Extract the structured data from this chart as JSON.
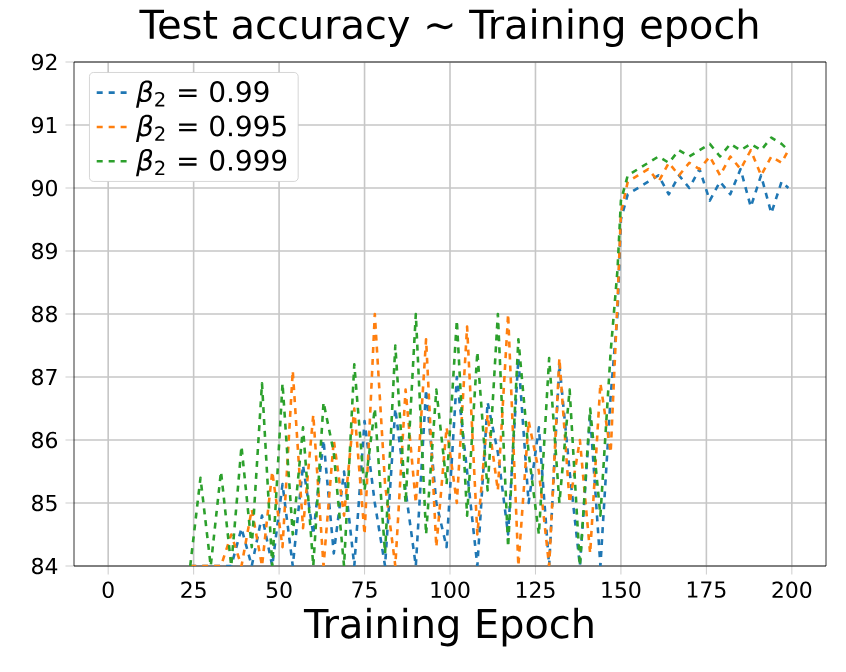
{
  "chart_data": {
    "type": "line",
    "title": "Test accuracy ~ Training epoch",
    "xlabel": "Training Epoch",
    "xlim": [
      -10,
      210
    ],
    "xticks": [
      0,
      25,
      50,
      75,
      100,
      125,
      150,
      175,
      200
    ],
    "ylim": [
      84,
      92
    ],
    "yticks": [
      84,
      85,
      86,
      87,
      88,
      89,
      90,
      91,
      92
    ],
    "grid": true,
    "legend": "top left",
    "line_style": "dashed",
    "marker": "none",
    "series": [
      {
        "name": "*β*$_{2}$ = 0.99",
        "color": "#1f77b4",
        "x": [
          24,
          27,
          30,
          33,
          36,
          39,
          42,
          45,
          48,
          51,
          54,
          57,
          60,
          63,
          66,
          69,
          72,
          75,
          78,
          81,
          84,
          87,
          90,
          93,
          96,
          99,
          102,
          105,
          108,
          111,
          114,
          117,
          120,
          123,
          126,
          129,
          132,
          135,
          138,
          141,
          144,
          147,
          149,
          150,
          152,
          155,
          158,
          161,
          164,
          167,
          170,
          173,
          176,
          179,
          182,
          185,
          188,
          191,
          194,
          197,
          199
        ],
        "values": [
          84,
          84,
          84,
          84,
          84,
          84.6,
          84,
          84.8,
          84,
          85.3,
          84,
          85.6,
          84.5,
          86,
          84.2,
          85.5,
          84,
          86.3,
          85,
          84,
          86.5,
          85.2,
          84,
          86.8,
          85,
          84.3,
          87,
          85.5,
          84,
          86.6,
          85.8,
          84.5,
          87.3,
          85,
          86.2,
          84,
          87.2,
          85.5,
          84,
          86.4,
          84,
          86.7,
          88.0,
          89.5,
          89.9,
          90.0,
          90.1,
          90.2,
          89.9,
          90.2,
          90.0,
          90.3,
          89.8,
          90.1,
          89.9,
          90.3,
          89.7,
          90.2,
          89.6,
          90.1,
          90.0
        ]
      },
      {
        "name": "*β*$_{2}$ = 0.995",
        "color": "#ff7f0e",
        "x": [
          24,
          27,
          30,
          33,
          36,
          39,
          42,
          45,
          48,
          51,
          54,
          57,
          60,
          63,
          66,
          69,
          72,
          75,
          78,
          81,
          84,
          87,
          90,
          93,
          96,
          99,
          102,
          105,
          108,
          111,
          114,
          117,
          120,
          123,
          126,
          129,
          132,
          135,
          138,
          141,
          144,
          147,
          149,
          150,
          152,
          155,
          158,
          161,
          164,
          167,
          170,
          173,
          176,
          179,
          182,
          185,
          188,
          191,
          194,
          197,
          199
        ],
        "values": [
          84,
          84,
          84,
          84,
          84.5,
          84,
          84.9,
          84,
          85.5,
          84.3,
          87.1,
          84.6,
          86.4,
          84,
          86,
          84.8,
          86.5,
          84.5,
          88.0,
          85.3,
          84,
          86.8,
          85,
          87.6,
          84.3,
          86.2,
          85,
          87.8,
          84.5,
          86.4,
          85.2,
          88.0,
          84,
          86.3,
          85.5,
          84,
          87.3,
          85,
          86,
          84.2,
          86.9,
          85.8,
          88.2,
          89.6,
          90.1,
          90.2,
          90.3,
          90.1,
          90.4,
          90.2,
          90.4,
          90.3,
          90.5,
          90.2,
          90.5,
          90.3,
          90.6,
          90.2,
          90.5,
          90.4,
          90.6
        ]
      },
      {
        "name": "*β*$_{2}$ = 0.999",
        "color": "#2ca02c",
        "x": [
          24,
          27,
          30,
          33,
          36,
          39,
          42,
          45,
          48,
          51,
          54,
          57,
          60,
          63,
          66,
          69,
          72,
          75,
          78,
          81,
          84,
          87,
          90,
          93,
          96,
          99,
          102,
          105,
          108,
          111,
          114,
          117,
          120,
          123,
          126,
          129,
          132,
          135,
          138,
          141,
          144,
          147,
          149,
          150,
          152,
          155,
          158,
          161,
          164,
          167,
          170,
          173,
          176,
          179,
          182,
          185,
          188,
          191,
          194,
          197,
          199
        ],
        "values": [
          84,
          85.4,
          84,
          85.5,
          84,
          85.9,
          84.3,
          86.9,
          84,
          86.9,
          84.5,
          86.2,
          84,
          86.6,
          85.8,
          84,
          87.2,
          85.2,
          86.5,
          84.2,
          87.5,
          85,
          88.0,
          84.5,
          86.8,
          85.3,
          87.9,
          84.8,
          87.4,
          85.2,
          88.0,
          84.3,
          87.6,
          85.8,
          84.5,
          87.3,
          85,
          86.8,
          84,
          86.5,
          84.8,
          87.4,
          88.7,
          89.8,
          90.2,
          90.3,
          90.4,
          90.5,
          90.4,
          90.6,
          90.5,
          90.6,
          90.7,
          90.5,
          90.7,
          90.6,
          90.7,
          90.6,
          90.8,
          90.7,
          90.6
        ]
      }
    ]
  }
}
